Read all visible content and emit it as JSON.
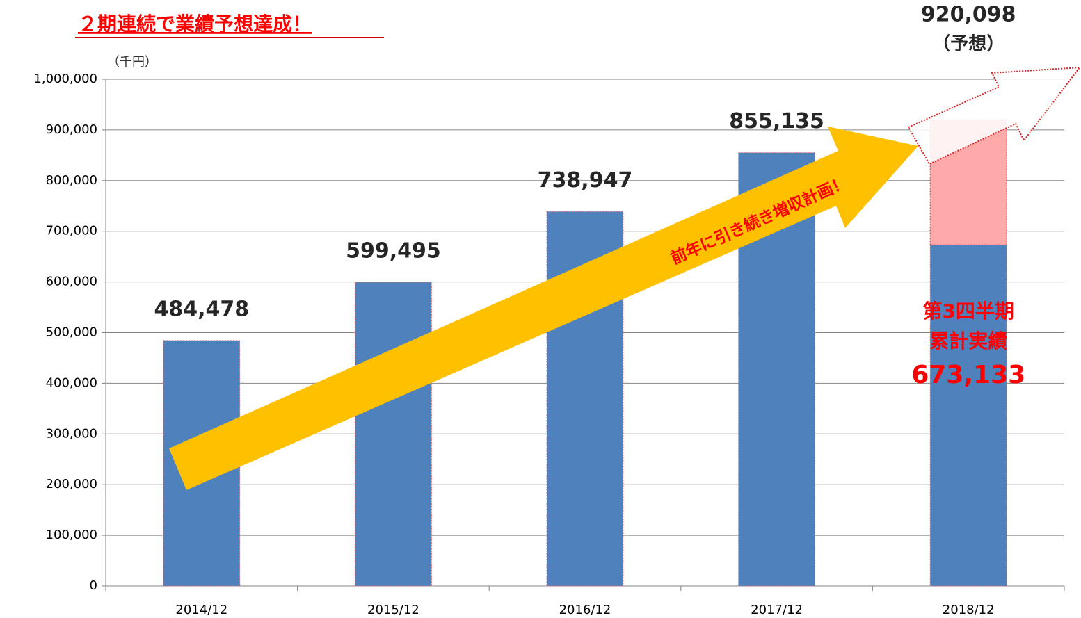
{
  "chart_data": {
    "type": "bar",
    "title": "２期連続で業績予想達成！",
    "unit_label": "（千円）",
    "categories": [
      "2014/12",
      "2015/12",
      "2016/12",
      "2017/12",
      "2018/12"
    ],
    "series": [
      {
        "color": "#4f81bd",
        "values": [
          484478,
          599495,
          738947,
          855135,
          673133
        ],
        "value_labels": [
          "484,478",
          "599,495",
          "738,947",
          "855,135",
          "673,133"
        ]
      },
      {
        "color": "#ffaaaa",
        "values": [
          null,
          null,
          null,
          null,
          246965
        ]
      }
    ],
    "stacked": true,
    "ylim": [
      0,
      1000000
    ],
    "yticks": [
      0,
      {
        "value": 100000,
        "label": "100,000"
      },
      {
        "value": 200000,
        "label": "200,000"
      },
      {
        "value": 300000,
        "label": "300,000"
      },
      {
        "value": 400000,
        "label": "400,000"
      },
      {
        "value": 500000,
        "label": "500,000"
      },
      {
        "value": 600000,
        "label": "600,000"
      },
      {
        "value": 700000,
        "label": "700,000"
      },
      {
        "value": 800000,
        "label": "800,000"
      },
      {
        "value": 900000,
        "label": "900,000"
      },
      {
        "value": 1000000,
        "label": "1,000,000"
      }
    ],
    "grid": true,
    "forecast": {
      "total": 920098,
      "label": "920,098",
      "sublabel": "（予想）"
    },
    "annotations": [
      "第3四半期",
      "累計実績"
    ],
    "arrow_text": "前年に引き続き増収計画！"
  }
}
